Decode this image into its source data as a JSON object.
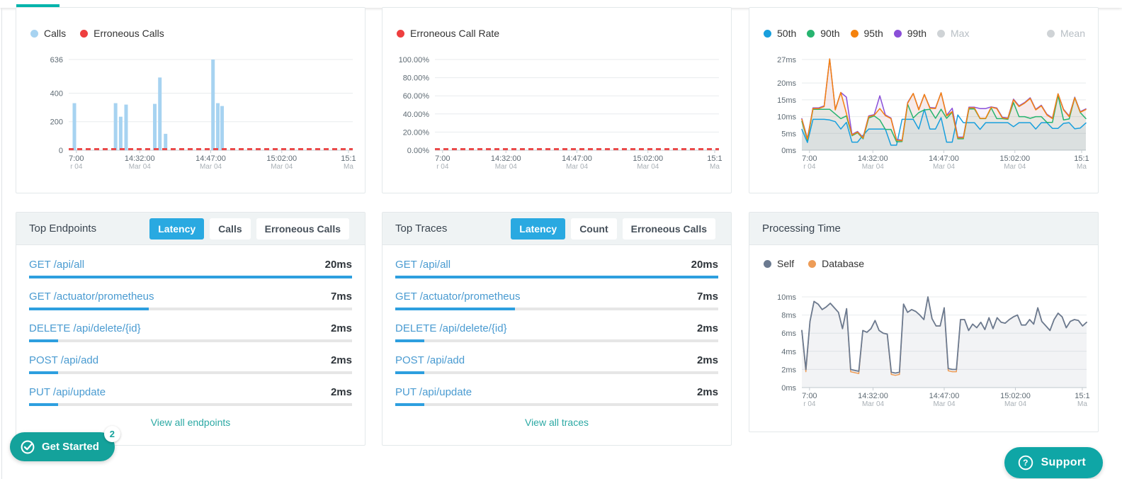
{
  "top_bar": {
    "indicator_color": "#00b4ab"
  },
  "floating_buttons": {
    "get_started": {
      "label": "Get Started",
      "badge": "2"
    },
    "support": {
      "label": "Support"
    }
  },
  "panels": {
    "calls": {
      "legend": [
        {
          "label": "Calls",
          "color": "#a7d3f1"
        },
        {
          "label": "Erroneous Calls",
          "color": "#ee3f3f"
        }
      ]
    },
    "error_rate": {
      "legend": [
        {
          "label": "Erroneous Call Rate",
          "color": "#ee3f3f"
        }
      ]
    },
    "latency": {
      "legend": [
        {
          "label": "50th",
          "color": "#189fdd"
        },
        {
          "label": "90th",
          "color": "#27b470"
        },
        {
          "label": "95th",
          "color": "#f5820d"
        },
        {
          "label": "99th",
          "color": "#8a4fd8"
        },
        {
          "label": "Max",
          "color": "#cfd3d6",
          "disabled": true
        },
        {
          "label": "Mean",
          "color": "#cfd3d6",
          "disabled": true,
          "push_right": true
        }
      ]
    },
    "endpoints": {
      "title": "Top Endpoints",
      "tabs": [
        {
          "label": "Latency",
          "active": true
        },
        {
          "label": "Calls",
          "active": false
        },
        {
          "label": "Erroneous Calls",
          "active": false
        }
      ],
      "items": [
        {
          "name": "GET /api/all",
          "value": "20ms",
          "pct": 100
        },
        {
          "name": "GET /actuator/prometheus",
          "value": "7ms",
          "pct": 37
        },
        {
          "name": "DELETE /api/delete/{id}",
          "value": "2ms",
          "pct": 9
        },
        {
          "name": "POST /api/add",
          "value": "2ms",
          "pct": 9
        },
        {
          "name": "PUT /api/update",
          "value": "2ms",
          "pct": 9
        }
      ],
      "view_all": "View all endpoints"
    },
    "traces": {
      "title": "Top Traces",
      "tabs": [
        {
          "label": "Latency",
          "active": true
        },
        {
          "label": "Count",
          "active": false
        },
        {
          "label": "Erroneous Calls",
          "active": false
        }
      ],
      "items": [
        {
          "name": "GET /api/all",
          "value": "20ms",
          "pct": 100
        },
        {
          "name": "GET /actuator/prometheus",
          "value": "7ms",
          "pct": 37
        },
        {
          "name": "DELETE /api/delete/{id}",
          "value": "2ms",
          "pct": 9
        },
        {
          "name": "POST /api/add",
          "value": "2ms",
          "pct": 9
        },
        {
          "name": "PUT /api/update",
          "value": "2ms",
          "pct": 9
        }
      ],
      "view_all": "View all traces"
    },
    "processing": {
      "title": "Processing Time",
      "legend": [
        {
          "label": "Self",
          "color": "#6b7a90"
        },
        {
          "label": "Database",
          "color": "#ed9c57"
        }
      ]
    }
  },
  "chart_data": {
    "calls": {
      "type": "bar",
      "title": "Calls / Erroneous Calls",
      "ylim": [
        0,
        636
      ],
      "y_max": 636,
      "y_ticks": [
        {
          "label": "636",
          "v": 636
        },
        {
          "label": "400",
          "v": 400
        },
        {
          "label": "200",
          "v": 200
        },
        {
          "label": "0",
          "v": 0
        }
      ],
      "x_labels": [
        {
          "time": "7:00",
          "date": "r 04",
          "f": 0.027
        },
        {
          "time": "14:32:00",
          "date": "Mar 04",
          "f": 0.25
        },
        {
          "time": "14:47:00",
          "date": "Mar 04",
          "f": 0.5
        },
        {
          "time": "15:02:00",
          "date": "Mar 04",
          "f": 0.75
        },
        {
          "time": "15:1",
          "date": "Ma",
          "f": 0.985
        }
      ],
      "bars": {
        "color": "#a7d3f1",
        "points": [
          {
            "f": 0.02,
            "v": 330
          },
          {
            "f": 0.165,
            "v": 330
          },
          {
            "f": 0.183,
            "v": 235
          },
          {
            "f": 0.202,
            "v": 320
          },
          {
            "f": 0.303,
            "v": 325
          },
          {
            "f": 0.321,
            "v": 510
          },
          {
            "f": 0.341,
            "v": 115
          },
          {
            "f": 0.508,
            "v": 636
          },
          {
            "f": 0.525,
            "v": 330
          },
          {
            "f": 0.54,
            "v": 310
          }
        ]
      },
      "zero_line": {
        "color": "#ea4b4b",
        "v": 0
      }
    },
    "error_rate": {
      "type": "line",
      "title": "Erroneous Call Rate",
      "ylim": [
        0,
        100
      ],
      "y_max": 100,
      "y_ticks": [
        {
          "label": "100.00%",
          "v": 100
        },
        {
          "label": "80.00%",
          "v": 80
        },
        {
          "label": "60.00%",
          "v": 60
        },
        {
          "label": "40.00%",
          "v": 40
        },
        {
          "label": "20.00%",
          "v": 20
        },
        {
          "label": "0.00%",
          "v": 0
        }
      ],
      "x_labels": [
        {
          "time": "7:00",
          "date": "r 04",
          "f": 0.027
        },
        {
          "time": "14:32:00",
          "date": "Mar 04",
          "f": 0.25
        },
        {
          "time": "14:47:00",
          "date": "Mar 04",
          "f": 0.5
        },
        {
          "time": "15:02:00",
          "date": "Mar 04",
          "f": 0.75
        },
        {
          "time": "15:1",
          "date": "Ma",
          "f": 0.985
        }
      ],
      "zero_line": {
        "color": "#ea4b4b",
        "v": 0
      },
      "note": "error rate flat at 0.00% across the whole window"
    },
    "latency": {
      "type": "line",
      "title": "Latency percentiles (ms)",
      "ylim": [
        0,
        27
      ],
      "y_max": 27,
      "y_ticks": [
        {
          "label": "27ms",
          "v": 27
        },
        {
          "label": "20ms",
          "v": 20
        },
        {
          "label": "15ms",
          "v": 15
        },
        {
          "label": "10ms",
          "v": 10
        },
        {
          "label": "5ms",
          "v": 5
        },
        {
          "label": "0ms",
          "v": 0
        }
      ],
      "x_labels": [
        {
          "time": "7:00",
          "date": "r 04",
          "f": 0.027
        },
        {
          "time": "14:32:00",
          "date": "Mar 04",
          "f": 0.25
        },
        {
          "time": "14:47:00",
          "date": "Mar 04",
          "f": 0.5
        },
        {
          "time": "15:02:00",
          "date": "Mar 04",
          "f": 0.75
        },
        {
          "time": "15:1",
          "date": "Ma",
          "f": 0.985
        }
      ],
      "series": [
        {
          "name": "50th",
          "color": "#189fdd",
          "fill_opacity": 0.07,
          "width": 1.5,
          "values": [
            6.2,
            2.3,
            9.2,
            9.2,
            9.2,
            9.0,
            8.5,
            6.3,
            8.3,
            2.4,
            2.4,
            4.5,
            6.3,
            6.3,
            6.3,
            6.3,
            1.5,
            1.5,
            9.2,
            9.2,
            9.2,
            6.3,
            12.2,
            6.3,
            6.3,
            9.7,
            2.4,
            2.4,
            10.5,
            8.2,
            8.2,
            8.2,
            6.2,
            8.2,
            8.2,
            8.2,
            8.2,
            8.2,
            7.0,
            8.2,
            8.2,
            8.2,
            6.3,
            8.2,
            8.2,
            6.5,
            6.5,
            8.0,
            8.2,
            6.4,
            6.6,
            8.1
          ]
        },
        {
          "name": "99th",
          "color": "#8a4fd8",
          "fill_opacity": 0.07,
          "width": 1.5,
          "values": [
            9.4,
            3.5,
            12.6,
            12.6,
            13.2,
            27.2,
            12.2,
            17.2,
            15.8,
            4.7,
            5.6,
            3.8,
            10.2,
            10.6,
            16.2,
            10.5,
            9.6,
            3.2,
            3.0,
            14.2,
            16.9,
            12.2,
            16.6,
            12.7,
            12.6,
            17.1,
            10.4,
            12.5,
            3.9,
            3.9,
            12.8,
            12.8,
            12.4,
            12.4,
            12.9,
            12.6,
            9.8,
            9.6,
            15.2,
            13.2,
            14.2,
            15.6,
            12.2,
            13.4,
            10.7,
            9.6,
            16.8,
            12.2,
            10.2,
            15.8,
            11.5,
            12.3
          ]
        },
        {
          "name": "90th",
          "color": "#27b470",
          "fill_opacity": 0.07,
          "width": 1.5,
          "values": [
            8.6,
            3.0,
            12.2,
            12.2,
            12.2,
            12.2,
            10.8,
            9.4,
            10.2,
            4.3,
            5.2,
            3.4,
            9.6,
            10.2,
            9.0,
            6.2,
            6.2,
            2.5,
            2.6,
            13.7,
            9.6,
            11.2,
            12.0,
            12.2,
            9.5,
            12.2,
            9.5,
            11.3,
            3.4,
            3.4,
            12.3,
            12.3,
            9.4,
            9.4,
            12.6,
            9.4,
            9.4,
            9.2,
            14.2,
            10.0,
            10.0,
            9.5,
            10.0,
            10.0,
            8.3,
            8.3,
            16.3,
            9.0,
            9.3,
            15.6,
            11.2,
            9.4
          ]
        },
        {
          "name": "95th",
          "color": "#f5820d",
          "fill_opacity": 0.07,
          "width": 1.5,
          "values": [
            9.2,
            3.3,
            12.4,
            12.4,
            13.0,
            27.2,
            12.0,
            17.2,
            11.0,
            4.5,
            5.4,
            3.6,
            10.0,
            10.4,
            12.4,
            10.3,
            9.4,
            3.0,
            2.8,
            14.0,
            16.9,
            12.0,
            16.6,
            12.5,
            12.4,
            17.1,
            10.2,
            11.5,
            3.7,
            3.7,
            12.6,
            12.6,
            9.5,
            9.5,
            12.8,
            12.4,
            9.6,
            9.4,
            15.0,
            13.0,
            14.0,
            15.4,
            12.0,
            13.2,
            10.5,
            9.4,
            16.8,
            12.0,
            10.0,
            15.6,
            11.3,
            12.1
          ]
        }
      ]
    },
    "processing": {
      "type": "area",
      "title": "Processing Time (ms)",
      "ylim": [
        0,
        10
      ],
      "y_max": 10,
      "y_ticks": [
        {
          "label": "10ms",
          "v": 10
        },
        {
          "label": "8ms",
          "v": 8
        },
        {
          "label": "6ms",
          "v": 6
        },
        {
          "label": "4ms",
          "v": 4
        },
        {
          "label": "2ms",
          "v": 2
        },
        {
          "label": "0ms",
          "v": 0
        }
      ],
      "x_labels": [
        {
          "time": "7:00",
          "date": "r 04",
          "f": 0.027
        },
        {
          "time": "14:32:00",
          "date": "Mar 04",
          "f": 0.25
        },
        {
          "time": "14:47:00",
          "date": "Mar 04",
          "f": 0.5
        },
        {
          "time": "15:02:00",
          "date": "Mar 04",
          "f": 0.75
        },
        {
          "time": "15:1",
          "date": "Ma",
          "f": 0.985
        }
      ],
      "series": [
        {
          "name": "Database",
          "color": "#ed9c57",
          "width": 1.5,
          "values": [
            6.3,
            1.75,
            7.3,
            9.5,
            9.2,
            8.6,
            8.9,
            9.3,
            8.8,
            8.3,
            6.5,
            8.7,
            1.75,
            1.65,
            1.55,
            6.3,
            6.1,
            6.5,
            7.4,
            6.3,
            6.0,
            5.9,
            1.45,
            1.35,
            1.45,
            9.2,
            8.3,
            8.6,
            8.4,
            8.0,
            7.5,
            10.0,
            7.6,
            6.8,
            6.8,
            8.8,
            1.85,
            1.75,
            1.75,
            7.5,
            7.5,
            6.3,
            7.0,
            6.6,
            7.2,
            6.4,
            7.7,
            6.5,
            7.7,
            7.2,
            7.1,
            7.5,
            7.8,
            8.0,
            6.9,
            6.9,
            7.5,
            7.0,
            8.8,
            7.3,
            6.8,
            6.3,
            7.5,
            8.2,
            7.8,
            6.6,
            7.3,
            7.5,
            7.4,
            6.8,
            7.2
          ]
        },
        {
          "name": "Self",
          "color": "#6b7a90",
          "fill": "#7b8ca0",
          "fill_opacity": 0.1,
          "width": 1.8,
          "values": [
            6.3,
            2.0,
            7.3,
            9.5,
            9.2,
            8.6,
            8.9,
            9.3,
            8.8,
            8.3,
            6.5,
            8.7,
            2.0,
            1.9,
            1.8,
            6.3,
            6.1,
            6.5,
            7.4,
            6.3,
            6.0,
            5.9,
            1.7,
            1.6,
            1.7,
            9.2,
            8.3,
            8.6,
            8.4,
            8.0,
            7.5,
            10.0,
            7.6,
            6.8,
            6.8,
            8.8,
            2.1,
            2.0,
            2.0,
            7.5,
            7.5,
            6.3,
            7.0,
            6.6,
            7.2,
            6.4,
            7.7,
            6.5,
            7.7,
            7.2,
            7.1,
            7.5,
            7.8,
            8.0,
            6.9,
            6.9,
            7.5,
            7.0,
            8.8,
            7.3,
            6.8,
            6.3,
            7.5,
            8.2,
            7.8,
            6.6,
            7.3,
            7.5,
            7.4,
            6.8,
            7.2
          ]
        }
      ]
    }
  }
}
